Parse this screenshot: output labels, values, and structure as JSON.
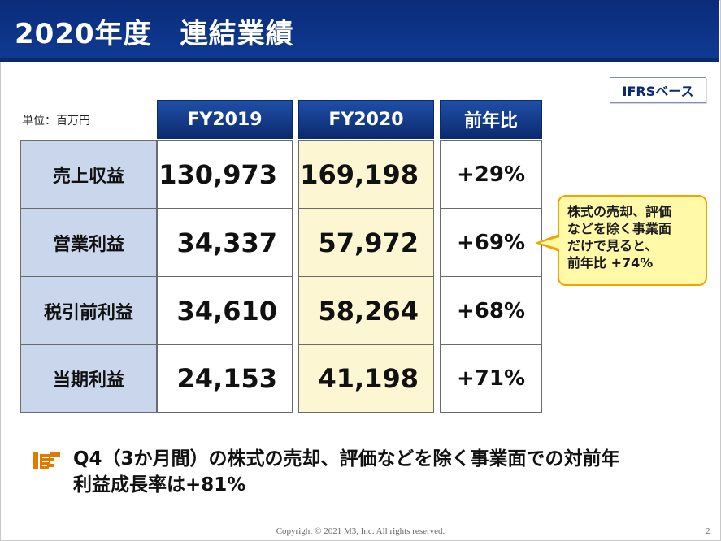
{
  "title": "2020年度　連結業績",
  "badge": "IFRSベース",
  "unit_label": "単位：百万円",
  "columns": [
    "FY2019",
    "FY2020",
    "前年比"
  ],
  "rows": [
    {
      "label": "売上収益",
      "fy2019": "130,973",
      "fy2020": "169,198",
      "yoy": "+29%"
    },
    {
      "label": "営業利益",
      "fy2019": "34,337",
      "fy2020": "57,972",
      "yoy": "+69%"
    },
    {
      "label": "税引前利益",
      "fy2019": "34,610",
      "fy2020": "58,264",
      "yoy": "+68%"
    },
    {
      "label": "当期利益",
      "fy2019": "24,153",
      "fy2020": "41,198",
      "yoy": "+71%"
    }
  ],
  "callout": {
    "lines": [
      "株式の売却、評価",
      "などを除く事業面",
      "だけで見ると、",
      "前年比 +74%"
    ],
    "border_color": "#f0a500",
    "fill_color": "#fff9a8"
  },
  "note": {
    "icon": "pointing-hand-icon",
    "lines": [
      "Q4（3か月間）の株式の売却、評価などを除く事業面での対前年",
      "利益成長率は+81%"
    ]
  },
  "footer": "Copyright © 2021  M3, Inc.  All rights reserved.",
  "page_number": "2",
  "colors": {
    "title_bar": "#0b2a6e",
    "row_label_bg": "#c9d6ec",
    "fy2020_bg": "#fdf6d2",
    "accent_orange": "#e07b00"
  }
}
